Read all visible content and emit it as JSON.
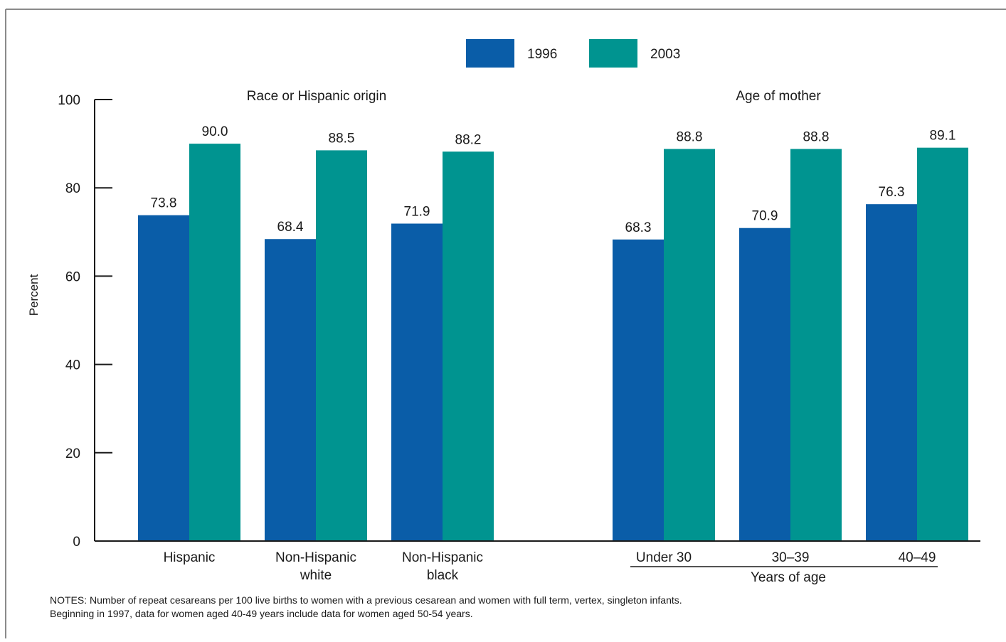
{
  "chart_data": {
    "type": "bar",
    "ylabel": "Percent",
    "ylim": [
      0,
      100
    ],
    "yticks": [
      0,
      20,
      40,
      60,
      80,
      100
    ],
    "grid": false,
    "legend_placement": "top-center",
    "colors": {
      "1996": "#0a5da8",
      "2003": "#009490"
    },
    "series": [
      {
        "name": "1996",
        "values": [
          73.8,
          68.4,
          71.9,
          68.3,
          70.9,
          76.3
        ]
      },
      {
        "name": "2003",
        "values": [
          90.0,
          88.5,
          88.2,
          88.8,
          88.8,
          89.1
        ]
      }
    ],
    "value_labels": {
      "1996": [
        "73.8",
        "68.4",
        "71.9",
        "68.3",
        "70.9",
        "76.3"
      ],
      "2003": [
        "90.0",
        "88.5",
        "88.2",
        "88.8",
        "88.8",
        "89.1"
      ]
    },
    "categories": [
      "Hispanic",
      "Non-Hispanic white",
      "Non-Hispanic black",
      "Under 30",
      "30–39",
      "40–49"
    ],
    "category_label_lines": [
      [
        "Hispanic"
      ],
      [
        "Non-Hispanic",
        "white"
      ],
      [
        "Non-Hispanic",
        "black"
      ],
      [
        "Under 30"
      ],
      [
        "30–39"
      ],
      [
        "40–49"
      ]
    ],
    "groups": [
      {
        "title": "Race or Hispanic origin",
        "categories": [
          0,
          1,
          2
        ]
      },
      {
        "title": "Age of mother",
        "categories": [
          3,
          4,
          5
        ],
        "sublabel": "Years of age"
      }
    ]
  },
  "notes": [
    "NOTES: Number of repeat cesareans per 100 live births to women with a previous cesarean and women with full term, vertex, singleton infants.",
    "Beginning in 1997, data for women aged 40-49 years include data for women aged 50-54 years."
  ]
}
